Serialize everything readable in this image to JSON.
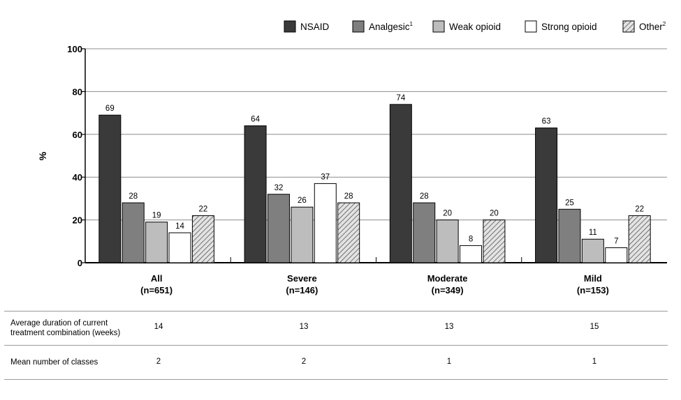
{
  "chart_data": {
    "type": "bar",
    "ylabel": "%",
    "xlabel": "",
    "ylim": [
      0,
      100
    ],
    "yticks": [
      0,
      20,
      40,
      60,
      80,
      100
    ],
    "grid": true,
    "legend_position": "top-right",
    "categories": [
      "All",
      "Severe",
      "Moderate",
      "Mild"
    ],
    "category_sublabels": [
      "(n=651)",
      "(n=146)",
      "(n=349)",
      "(n=153)"
    ],
    "series": [
      {
        "name": "NSAID",
        "superscript": "",
        "fill": "#3a3a3a",
        "pattern": "solid",
        "values": [
          69,
          64,
          74,
          63
        ]
      },
      {
        "name": "Analgesic",
        "superscript": "1",
        "fill": "#7f7f7f",
        "pattern": "solid",
        "values": [
          28,
          32,
          28,
          25
        ]
      },
      {
        "name": "Weak opioid",
        "superscript": "",
        "fill": "#bdbdbd",
        "pattern": "solid",
        "values": [
          19,
          26,
          20,
          11
        ]
      },
      {
        "name": "Strong opioid",
        "superscript": "",
        "fill": "#ffffff",
        "pattern": "solid",
        "values": [
          14,
          37,
          8,
          7
        ]
      },
      {
        "name": "Other",
        "superscript": "2",
        "fill": "#d9d9d9",
        "pattern": "hatch",
        "values": [
          22,
          28,
          20,
          22
        ]
      }
    ]
  },
  "table": {
    "rows": [
      {
        "label": "Average duration of current\ntreatment combination (weeks)",
        "values": [
          "14",
          "13",
          "13",
          "15"
        ]
      },
      {
        "label": "Mean number of classes",
        "values": [
          "2",
          "2",
          "1",
          "1"
        ]
      }
    ]
  }
}
